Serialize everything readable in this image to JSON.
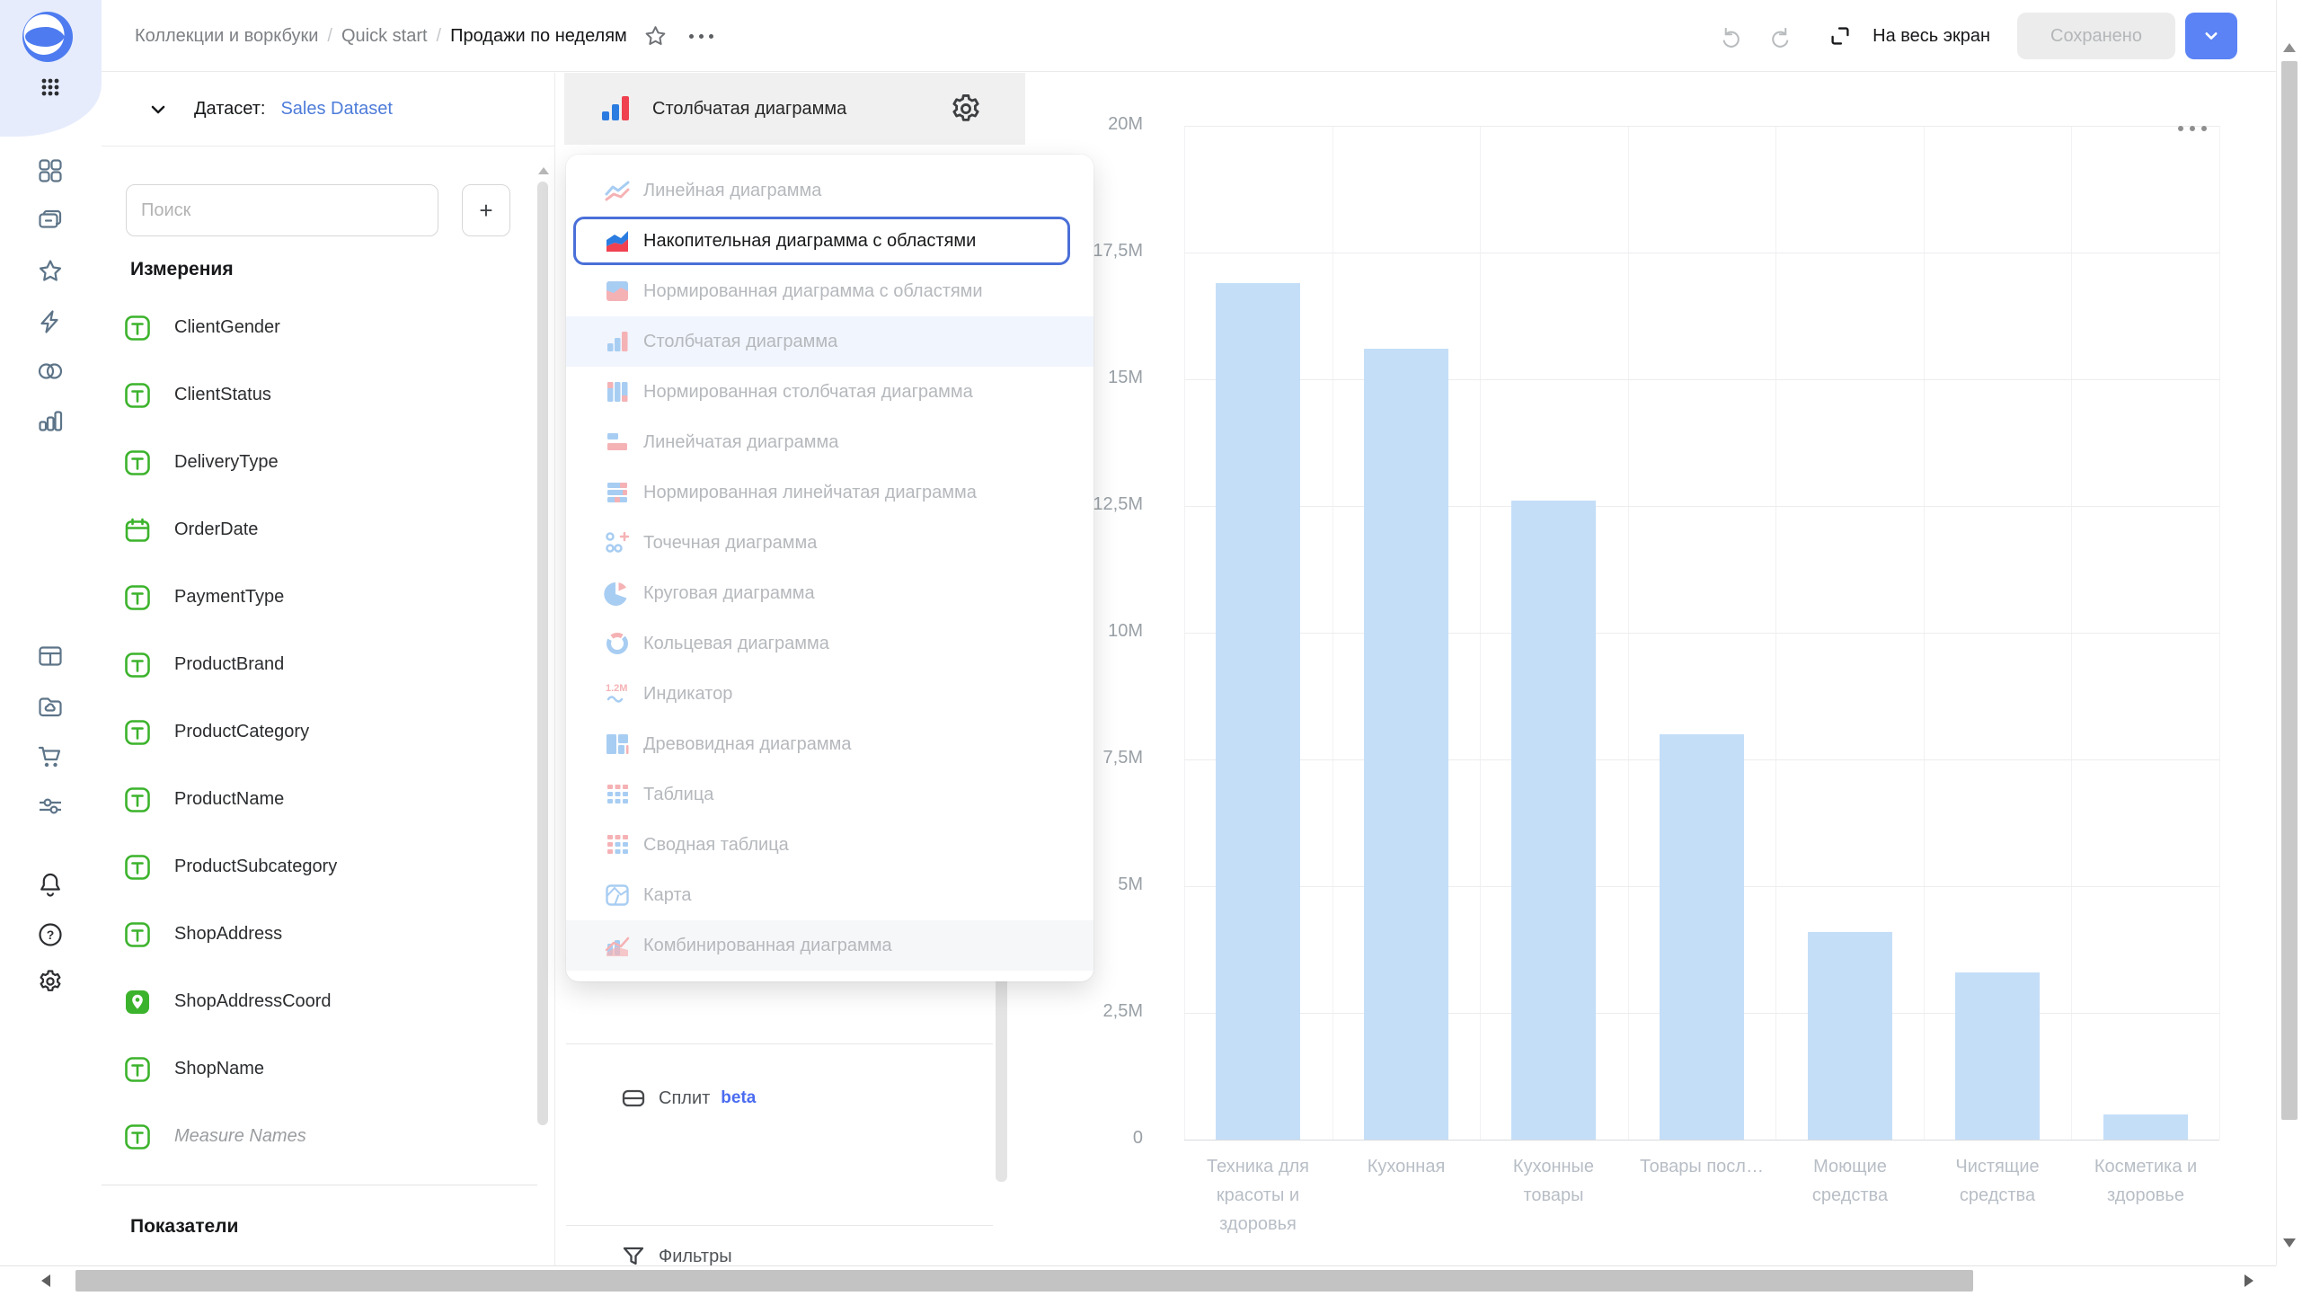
{
  "header": {
    "breadcrumbs": [
      "Коллекции и воркбуки",
      "Quick start",
      "Продажи по неделям"
    ],
    "separator": "/",
    "fullscreen_label": "На весь экран",
    "saved_label": "Сохранено"
  },
  "sidebar": {
    "icons": [
      {
        "name": "apps-grid-icon",
        "glyph": "dots",
        "tone": "dark"
      },
      {
        "name": "dashboard-grid-icon",
        "glyph": "grid",
        "tone": "slate"
      },
      {
        "name": "collections-icon",
        "glyph": "folders",
        "tone": "slate"
      },
      {
        "name": "favorites-star-icon",
        "glyph": "star",
        "tone": "slate"
      },
      {
        "name": "quick-actions-icon",
        "glyph": "bolt",
        "tone": "slate"
      },
      {
        "name": "connections-icon",
        "glyph": "circles",
        "tone": "slate"
      },
      {
        "name": "charts-icon",
        "glyph": "barchart",
        "tone": "slate"
      },
      {
        "name": "tables-icon",
        "glyph": "table",
        "tone": "slate"
      },
      {
        "name": "storage-folder-icon",
        "glyph": "foldercloud",
        "tone": "slate"
      },
      {
        "name": "marketplace-cart-icon",
        "glyph": "cart",
        "tone": "slate"
      },
      {
        "name": "services-sliders-icon",
        "glyph": "sliders",
        "tone": "slate"
      },
      {
        "name": "notifications-bell-icon",
        "glyph": "bell",
        "tone": "dark"
      },
      {
        "name": "help-icon",
        "glyph": "help",
        "tone": "dark"
      },
      {
        "name": "settings-gear-icon",
        "glyph": "gear",
        "tone": "dark"
      }
    ]
  },
  "dataset_panel": {
    "title": "Датасет:",
    "dataset_name": "Sales Dataset",
    "search_placeholder": "Поиск",
    "add_button_label": "+",
    "dimensions_title": "Измерения",
    "measures_title": "Показатели",
    "fields": [
      {
        "name": "ClientGender",
        "type": "text"
      },
      {
        "name": "ClientStatus",
        "type": "text"
      },
      {
        "name": "DeliveryType",
        "type": "text"
      },
      {
        "name": "OrderDate",
        "type": "date"
      },
      {
        "name": "PaymentType",
        "type": "text"
      },
      {
        "name": "ProductBrand",
        "type": "text"
      },
      {
        "name": "ProductCategory",
        "type": "text"
      },
      {
        "name": "ProductName",
        "type": "text"
      },
      {
        "name": "ProductSubcategory",
        "type": "text"
      },
      {
        "name": "ShopAddress",
        "type": "text"
      },
      {
        "name": "ShopAddressCoord",
        "type": "geopoint"
      },
      {
        "name": "ShopName",
        "type": "text"
      },
      {
        "name": "Measure Names",
        "type": "text",
        "muted": true
      }
    ]
  },
  "chart_settings": {
    "selected_type_label": "Столбчатая диаграмма",
    "split_label": "Сплит",
    "split_badge": "beta",
    "filters_label": "Фильтры"
  },
  "chart_type_menu": {
    "items": [
      {
        "label": "Линейная диаграмма",
        "icon": "line",
        "state": "default"
      },
      {
        "label": "Накопительная диаграмма с областями",
        "icon": "area",
        "state": "highlighted"
      },
      {
        "label": "Нормированная диаграмма с областями",
        "icon": "areaNorm",
        "state": "default"
      },
      {
        "label": "Столбчатая диаграмма",
        "icon": "bar",
        "state": "selected"
      },
      {
        "label": "Нормированная столбчатая диаграмма",
        "icon": "barNorm",
        "state": "default"
      },
      {
        "label": "Линейчатая диаграмма",
        "icon": "barH",
        "state": "default"
      },
      {
        "label": "Нормированная линейчатая диаграмма",
        "icon": "barHNorm",
        "state": "default"
      },
      {
        "label": "Точечная диаграмма",
        "icon": "scatter",
        "state": "default"
      },
      {
        "label": "Круговая диаграмма",
        "icon": "pie",
        "state": "default"
      },
      {
        "label": "Кольцевая диаграмма",
        "icon": "donut",
        "state": "default"
      },
      {
        "label": "Индикатор",
        "icon": "indicator",
        "state": "default"
      },
      {
        "label": "Древовидная диаграмма",
        "icon": "treemap",
        "state": "default"
      },
      {
        "label": "Таблица",
        "icon": "table",
        "state": "default"
      },
      {
        "label": "Сводная таблица",
        "icon": "pivot",
        "state": "default"
      },
      {
        "label": "Карта",
        "icon": "map",
        "state": "default"
      },
      {
        "label": "Комбинированная диаграмма",
        "icon": "combo",
        "state": "hover"
      }
    ]
  },
  "chart_data": {
    "type": "bar",
    "title": "",
    "xlabel": "",
    "ylabel": "",
    "categories": [
      "Техника для красоты и здоровья",
      "Кухонная",
      "Кухонные товары",
      "Товары посл…",
      "Моющие средства",
      "Чистящие средства",
      "Косметика и здоровье"
    ],
    "categories_lines": [
      [
        "Техника для",
        "красоты и",
        "здоровья"
      ],
      [
        "Кухонная"
      ],
      [
        "Кухонные",
        "товары"
      ],
      [
        "Товары посл…"
      ],
      [
        "Моющие",
        "средства"
      ],
      [
        "Чистящие",
        "средства"
      ],
      [
        "Косметика и",
        "здоровье"
      ]
    ],
    "values_millions": [
      16.9,
      15.6,
      12.6,
      8.0,
      4.1,
      3.3,
      0.5
    ],
    "ylim_millions": [
      0,
      20
    ],
    "yticks": [
      "20M",
      "17,5M",
      "15M",
      "12,5M",
      "10M",
      "7,5M",
      "5M",
      "2,5M",
      "0"
    ],
    "grid": true,
    "legend": false,
    "bar_color": "#c4def8"
  },
  "colors": {
    "accent_blue": "#4a6fd8",
    "link_blue": "#4e7cd9",
    "beta_blue": "#4b6cf0",
    "field_green": "#3cb32c",
    "bar_fill": "#c4def8",
    "vivid_blue": "#2b7ce0",
    "vivid_red": "#ef4150",
    "pastel_blue": "#a8cdf2",
    "pastel_red": "#f5b2b5",
    "sidebar_bg": "#e6ecfc",
    "select_header_bg": "#f0f0f0"
  }
}
